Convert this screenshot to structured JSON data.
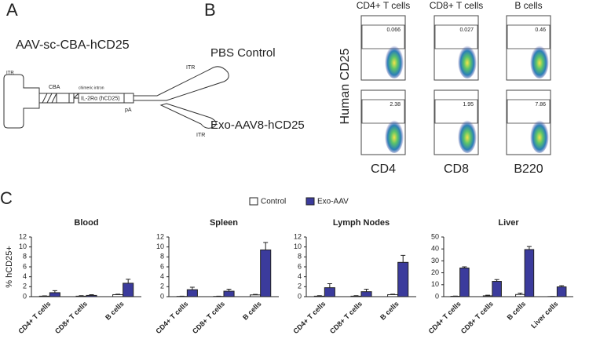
{
  "panel_labels": [
    "A",
    "B",
    "C"
  ],
  "construct": {
    "title": "AAV-sc-CBA-hCD25",
    "itr_left": "ITR",
    "cba": "CBA",
    "intron": "chimeric intron",
    "gene": "IL-2Rα (hCD25)",
    "pa": "pA",
    "itr_top": "ITR",
    "itr_bottom": "ITR"
  },
  "flow": {
    "columns": [
      "CD4+ T cells",
      "CD8+ T cells",
      "B cells"
    ],
    "rows": [
      "PBS Control",
      "Exo-AAV8-hCD25"
    ],
    "y_label": "Human CD25",
    "x_labels": [
      "CD4",
      "CD8",
      "B220"
    ],
    "gate_values": [
      [
        0.066,
        0.027,
        0.46
      ],
      [
        2.38,
        1.95,
        7.86
      ]
    ]
  },
  "shared_ylabel": "% hCD25+",
  "chart_data": [
    {
      "type": "bar",
      "title": "Blood",
      "categories": [
        "CD4+ T cells",
        "CD8+ T cells",
        "B cells"
      ],
      "series": [
        {
          "name": "Control",
          "color": "#ffffff",
          "values": [
            0.1,
            0.1,
            0.4
          ],
          "errors": [
            0.05,
            0.1,
            0.1
          ]
        },
        {
          "name": "Exo-AAV",
          "color": "#3b3b9c",
          "values": [
            0.8,
            0.25,
            2.7
          ],
          "errors": [
            0.4,
            0.15,
            0.8
          ]
        }
      ],
      "ylim": [
        0,
        12
      ],
      "yticks": [
        0,
        2,
        4,
        6,
        8,
        10,
        12
      ]
    },
    {
      "type": "bar",
      "title": "Spleen",
      "categories": [
        "CD4+ T cells",
        "CD8+ T cells",
        "B cells"
      ],
      "series": [
        {
          "name": "Control",
          "color": "#ffffff",
          "values": [
            0.05,
            0.05,
            0.35
          ],
          "errors": [
            0.05,
            0.05,
            0.1
          ]
        },
        {
          "name": "Exo-AAV",
          "color": "#3b3b9c",
          "values": [
            1.4,
            1.1,
            9.4
          ],
          "errors": [
            0.5,
            0.4,
            1.5
          ]
        }
      ],
      "ylim": [
        0,
        12
      ],
      "yticks": [
        0,
        2,
        4,
        6,
        8,
        10,
        12
      ]
    },
    {
      "type": "bar",
      "title": "Lymph Nodes",
      "categories": [
        "CD4+ T cells",
        "CD8+ T cells",
        "B cells"
      ],
      "series": [
        {
          "name": "Control",
          "color": "#ffffff",
          "values": [
            0.1,
            0.1,
            0.4
          ],
          "errors": [
            0.1,
            0.1,
            0.1
          ]
        },
        {
          "name": "Exo-AAV",
          "color": "#3b3b9c",
          "values": [
            1.8,
            1.0,
            6.9
          ],
          "errors": [
            0.8,
            0.5,
            1.4
          ]
        }
      ],
      "ylim": [
        0,
        12
      ],
      "yticks": [
        0,
        2,
        4,
        6,
        8,
        10,
        12
      ]
    },
    {
      "type": "bar",
      "title": "Liver",
      "categories": [
        "CD4+ T cells",
        "CD8+ T cells",
        "B cells",
        "Liver cells"
      ],
      "series": [
        {
          "name": "Control",
          "color": "#ffffff",
          "values": [
            0.3,
            0.7,
            1.8,
            0.1
          ],
          "errors": [
            0.2,
            0.5,
            1.2,
            0.1
          ]
        },
        {
          "name": "Exo-AAV",
          "color": "#3b3b9c",
          "values": [
            24,
            12.8,
            39.5,
            8.2
          ],
          "errors": [
            1,
            1.5,
            2.5,
            1
          ]
        }
      ],
      "ylim": [
        0,
        50
      ],
      "yticks": [
        0,
        10,
        20,
        30,
        40,
        50
      ]
    }
  ]
}
